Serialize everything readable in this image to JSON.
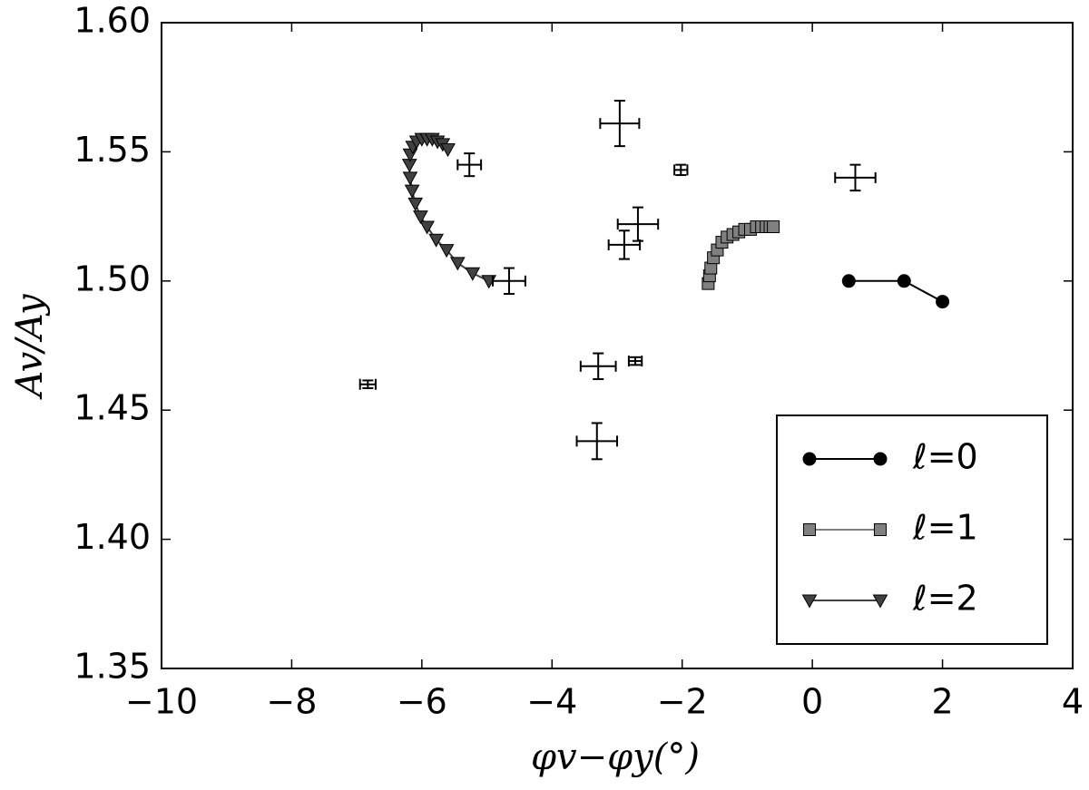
{
  "chart_data": {
    "type": "line",
    "x_label": "φv−φy(°)",
    "y_label": "Av/Ay",
    "xlim": [
      -10,
      4
    ],
    "ylim": [
      1.35,
      1.6
    ],
    "xticks": [
      {
        "value": -10,
        "label": "−10"
      },
      {
        "value": -8,
        "label": "−8"
      },
      {
        "value": -6,
        "label": "−6"
      },
      {
        "value": -4,
        "label": "−4"
      },
      {
        "value": -2,
        "label": "−2"
      },
      0,
      2,
      4
    ],
    "yticks": [
      1.35,
      {
        "value": 1.4,
        "label": "1.40"
      },
      1.45,
      {
        "value": 1.5,
        "label": "1.50"
      },
      1.55,
      {
        "value": 1.6,
        "label": "1.60"
      }
    ],
    "grid": false,
    "legend": "lower right",
    "series": [
      {
        "name": "ℓ=0",
        "color": "#000000",
        "marker": "circle",
        "x": [
          0.56,
          1.41,
          2.0
        ],
        "values": [
          1.5,
          1.5,
          1.492
        ]
      },
      {
        "name": "ℓ=1",
        "color": "#808080",
        "marker": "square",
        "x": [
          -1.6,
          -1.58,
          -1.56,
          -1.52,
          -1.46,
          -1.39,
          -1.31,
          -1.22,
          -1.13,
          -1.04,
          -0.95,
          -0.86,
          -0.78,
          -0.71,
          -0.65,
          -0.6
        ],
        "values": [
          1.499,
          1.502,
          1.505,
          1.509,
          1.512,
          1.515,
          1.517,
          1.518,
          1.519,
          1.52,
          1.52,
          1.521,
          1.521,
          1.521,
          1.521,
          1.521
        ]
      },
      {
        "name": "ℓ=2",
        "color": "#404040",
        "marker": "triangle-down",
        "x": [
          -4.97,
          -5.22,
          -5.45,
          -5.62,
          -5.78,
          -5.92,
          -6.02,
          -6.1,
          -6.15,
          -6.18,
          -6.19,
          -6.18,
          -6.14,
          -6.08,
          -6.0,
          -5.92,
          -5.84,
          -5.76,
          -5.68,
          -5.6
        ],
        "values": [
          1.5,
          1.503,
          1.507,
          1.512,
          1.516,
          1.521,
          1.525,
          1.53,
          1.535,
          1.54,
          1.545,
          1.549,
          1.552,
          1.554,
          1.555,
          1.555,
          1.555,
          1.554,
          1.553,
          1.551
        ]
      }
    ],
    "errorbars": {
      "color": "#000000",
      "x": [
        -2.96,
        -5.27,
        -2.02,
        0.66,
        -2.68,
        -2.89,
        -4.66,
        -3.29,
        -2.72,
        -6.83,
        -3.31
      ],
      "values": [
        1.561,
        1.545,
        1.543,
        1.54,
        1.522,
        1.514,
        1.5,
        1.467,
        1.469,
        1.46,
        1.438
      ],
      "xerr": [
        0.3,
        0.18,
        0.1,
        0.31,
        0.31,
        0.24,
        0.25,
        0.27,
        0.1,
        0.12,
        0.31
      ],
      "yerr": [
        0.0088,
        0.0044,
        0.002,
        0.005,
        0.0065,
        0.0055,
        0.005,
        0.005,
        0.0015,
        0.0015,
        0.007
      ]
    }
  }
}
